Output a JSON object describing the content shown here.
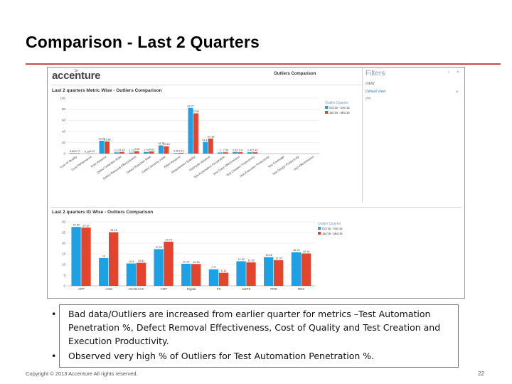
{
  "slide": {
    "title": "Comparison - Last 2 Quarters",
    "footer": "Copyright © 2013 Accenture All rights reserved.",
    "page_number": "22",
    "accent_color": "#c0504d"
  },
  "dashboard": {
    "logo": "accenture",
    "header": "Outliers Comparison",
    "filters": {
      "title": "Filters",
      "view_label": "VIEW",
      "selected": "Default View",
      "all_label": "(All)"
    },
    "colors": {
      "series1": "#1ca2e4",
      "series2": "#e3442e"
    }
  },
  "bullets": [
    "Bad data/Outliers are increased from earlier quarter for metrics –Test Automation Penetration %, Defect Removal Effectiveness, Cost of Quality and Test Creation and Execution Productivity.",
    "Observed very high % of Outliers for Test Automation Penetration %."
  ],
  "chart_data": [
    {
      "type": "bar",
      "title": "Last 2 quarters Metric Wise - Outliers Comparison",
      "legend_title": "Outlier.Quarter",
      "ylim": [
        0,
        100
      ],
      "yticks": [
        0,
        20,
        40,
        60,
        80,
        100
      ],
      "categories": [
        "Cost of Quality",
        "Cost Performance",
        "Cost Variance",
        "Defect Detection Rate",
        "Defect Removal Effectiveness",
        "Defect Rejection Rate",
        "Defect Severity Index",
        "Effort Variance",
        "Requirement Stability",
        "Schedule Variance",
        "Test Automation Penetration",
        "Test Case Effectiveness",
        "Test Creation Productivity",
        "Test Execution Productivity",
        "Test Coverage",
        "Test Design Productivity",
        "Test Effectiveness"
      ],
      "series": [
        {
          "name": "Oct'15 - Dec'15",
          "values": [
            0.89,
            0.19,
            23.22,
            2.17,
            1.72,
            2.79,
            14.75,
            0.99,
            82.27,
            21.17,
            2.0,
            2.62,
            2.42,
            0,
            0,
            0,
            0
          ]
        },
        {
          "name": "Jan'16 - Mar'16",
          "values": [
            0.77,
            0.47,
            21.86,
            3.13,
            4.39,
            4.01,
            13.16,
            1.41,
            72.51,
            27.18,
            2.33,
            2.4,
            2.41,
            0,
            0,
            0,
            0
          ]
        }
      ]
    },
    {
      "type": "bar",
      "title": "Last 2 quarters IG Wise - Outliers Comparison",
      "legend_title": "Outlier.Quarter",
      "ylim": [
        0,
        30
      ],
      "yticks": [
        0,
        5,
        10,
        15,
        20,
        25,
        30
      ],
      "categories": [
        "APP",
        "ASM",
        "AVA/NACC",
        "CMT",
        "Digital",
        "FS",
        "H&PS",
        "PRD",
        "RES"
      ],
      "series": [
        {
          "name": "Oct'15 - Dec'15",
          "values": [
            27.62,
            13.0,
            10.5,
            17.21,
            10.37,
            7.77,
            11.52,
            13.46,
            15.76
          ]
        },
        {
          "name": "Jan'16 - Mar'16",
          "values": [
            27.37,
            25.15,
            10.81,
            20.73,
            10.25,
            6.13,
            11.02,
            12.02,
            15.18
          ]
        }
      ]
    }
  ]
}
